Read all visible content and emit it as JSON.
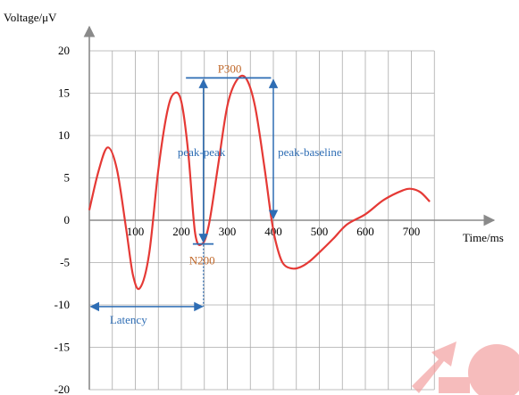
{
  "chart_data": {
    "type": "line",
    "title": "",
    "xlabel": "Time/ms",
    "ylabel": "Voltage/μV",
    "xlim": [
      0,
      800
    ],
    "ylim": [
      -20,
      20
    ],
    "x_ticks": [
      100,
      200,
      300,
      400,
      500,
      600,
      700
    ],
    "y_ticks": [
      20,
      15,
      10,
      5,
      0,
      -5,
      -10,
      -15,
      -20
    ],
    "grid": true,
    "series": [
      {
        "color": "#e53935",
        "x": [
          0,
          20,
          40,
          60,
          80,
          95,
          110,
          130,
          150,
          170,
          185,
          200,
          215,
          230,
          245,
          260,
          280,
          300,
          320,
          340,
          360,
          380,
          395,
          405,
          420,
          440,
          460,
          480,
          500,
          530,
          560,
          600,
          640,
          680,
          700,
          720,
          740
        ],
        "y": [
          1.2,
          5.8,
          8.6,
          6.0,
          -1.0,
          -6.5,
          -8.0,
          -4.0,
          6.0,
          13.0,
          15.0,
          14.0,
          8.0,
          -1.5,
          -2.8,
          -0.5,
          6.5,
          13.5,
          16.5,
          16.8,
          13.5,
          6.5,
          0.5,
          -2.5,
          -5.0,
          -5.7,
          -5.5,
          -4.8,
          -3.8,
          -2.2,
          -0.5,
          0.7,
          2.4,
          3.5,
          3.7,
          3.3,
          2.2
        ]
      }
    ],
    "annotations": {
      "p300": "P300",
      "n200": "N200",
      "peak_peak": "peak-peak",
      "peak_baseline": "peak-baseline",
      "latency": "Latency"
    },
    "colors": {
      "signal": "#e53935",
      "annotation": "#2e6db4",
      "component_label": "#c0682a",
      "grid": "#aaaaaa"
    }
  }
}
